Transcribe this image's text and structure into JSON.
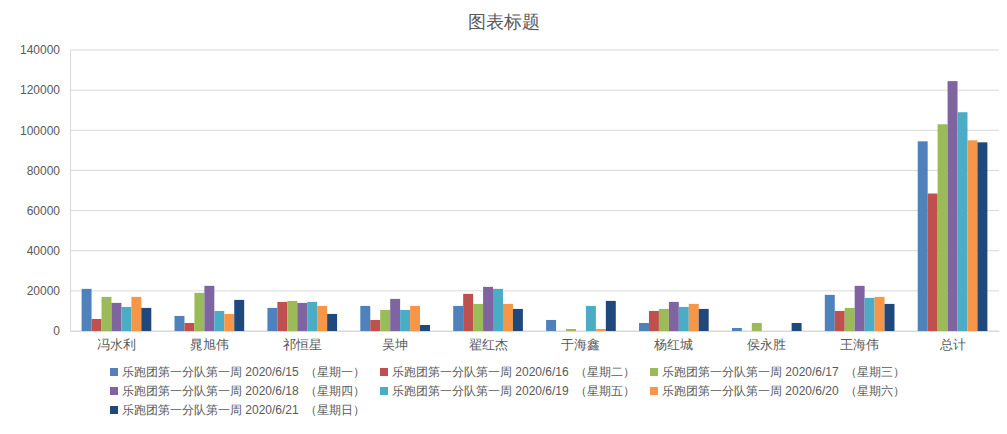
{
  "chart_data": {
    "type": "bar",
    "title": "图表标题",
    "categories": [
      "冯水利",
      "晁旭伟",
      "祁恒星",
      "吴坤",
      "翟红杰",
      "于海鑫",
      "杨红城",
      "侯永胜",
      "王海伟",
      "总计"
    ],
    "series": [
      {
        "name": "乐跑团第一分队第一周 2020/6/15  （星期一）",
        "color": "#4f81bd",
        "values": [
          21000,
          7500,
          11500,
          12500,
          12500,
          5500,
          4000,
          1500,
          18000,
          94500
        ]
      },
      {
        "name": "乐跑团第一分队第一周 2020/6/16  （星期二）",
        "color": "#c0504d",
        "values": [
          6000,
          4000,
          14500,
          5500,
          18500,
          0,
          10000,
          0,
          10000,
          68500
        ]
      },
      {
        "name": "乐跑团第一分队第一周 2020/6/17  （星期三）",
        "color": "#9bbb59",
        "values": [
          17000,
          19000,
          15000,
          10500,
          13500,
          1000,
          11000,
          4000,
          11500,
          103000
        ]
      },
      {
        "name": "乐跑团第一分队第一周 2020/6/18  （星期四）",
        "color": "#8064a2",
        "values": [
          14000,
          22500,
          14000,
          16000,
          22000,
          0,
          14500,
          0,
          22500,
          124500
        ]
      },
      {
        "name": "乐跑团第一分队第一周 2020/6/19  （星期五）",
        "color": "#4bacc6",
        "values": [
          12000,
          10000,
          14500,
          10500,
          21000,
          12500,
          12000,
          0,
          16500,
          109000
        ]
      },
      {
        "name": "乐跑团第一分队第一周 2020/6/20  （星期六）",
        "color": "#f79646",
        "values": [
          17000,
          8500,
          12500,
          12500,
          13500,
          1000,
          13500,
          0,
          17000,
          95000
        ]
      },
      {
        "name": "乐跑团第一分队第一周 2020/6/21  （星期日）",
        "color": "#1f497d",
        "values": [
          11500,
          15500,
          8500,
          3000,
          11000,
          15000,
          11000,
          4000,
          13500,
          94000
        ]
      }
    ],
    "ylim": [
      0,
      140000
    ],
    "yticks": [
      0,
      20000,
      40000,
      60000,
      80000,
      100000,
      120000,
      140000
    ],
    "grid": true,
    "legend": "bottom"
  }
}
